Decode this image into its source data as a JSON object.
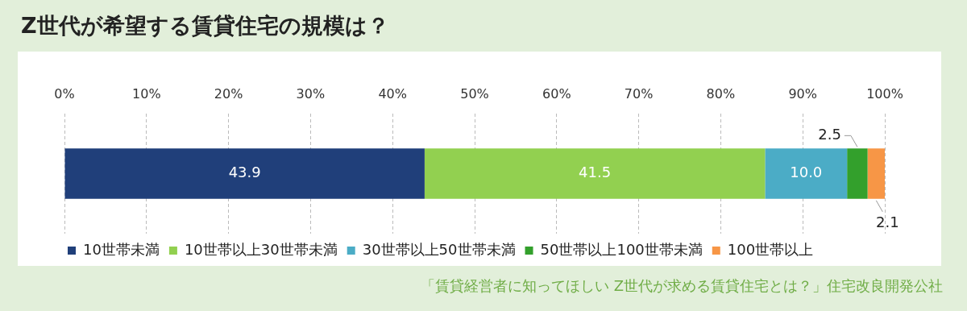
{
  "chart_data": {
    "type": "bar",
    "orientation": "horizontal",
    "stacked": true,
    "title": "Z世代が希望する賃貸住宅の規模は？",
    "categories": [
      null
    ],
    "series": [
      {
        "name": "10世帯未満",
        "color": "#203f7a",
        "values": [
          43.9
        ],
        "value_labels": [
          "43.9"
        ]
      },
      {
        "name": "10世帯以上30世帯未満",
        "color": "#92d050",
        "values": [
          41.5
        ],
        "value_labels": [
          "41.5"
        ]
      },
      {
        "name": "30世帯以上50世帯未満",
        "color": "#4bacc6",
        "values": [
          10.0
        ],
        "value_labels": [
          "10.0"
        ]
      },
      {
        "name": "50世帯以上100世帯未満",
        "color": "#33a02c",
        "values": [
          2.5
        ],
        "value_labels": [
          "2.5"
        ]
      },
      {
        "name": "100世帯以上",
        "color": "#f79646",
        "values": [
          2.1
        ],
        "value_labels": [
          "2.1"
        ]
      }
    ],
    "xlim": [
      0,
      100
    ],
    "xticks": [
      {
        "value": 0,
        "label": "0%"
      },
      {
        "value": 10,
        "label": "10%"
      },
      {
        "value": 20,
        "label": "20%"
      },
      {
        "value": 30,
        "label": "30%"
      },
      {
        "value": 40,
        "label": "40%"
      },
      {
        "value": 50,
        "label": "50%"
      },
      {
        "value": 60,
        "label": "60%"
      },
      {
        "value": 70,
        "label": "70%"
      },
      {
        "value": 80,
        "label": "80%"
      },
      {
        "value": 90,
        "label": "90%"
      },
      {
        "value": 100,
        "label": "100%"
      }
    ],
    "grid": "x",
    "legend": "bottom",
    "annotations": [
      "「賃貸経営者に知ってほしい Z世代が求める賃貸住宅とは？」住宅改良開発公社"
    ]
  }
}
